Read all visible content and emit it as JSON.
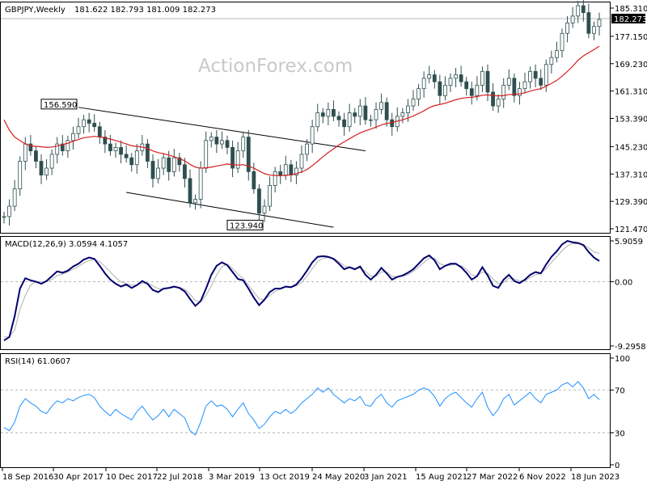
{
  "watermark": "ActionForex.com",
  "colors": {
    "candles": "#2f4f4f",
    "ma": "#d61f1f",
    "macd": "#00006e",
    "signal": "#b0b0b0",
    "rsi": "#1e90ff",
    "trendline": "#000000",
    "grid": "#b8b8b8",
    "price_label_bg": "#000000"
  },
  "chart_data": [
    {
      "type": "line",
      "title": "GBPJPY,Weekly",
      "ohlc_header": "181.622 182.793 181.009 182.273",
      "yticks": [
        "185.310",
        "177.150",
        "169.230",
        "161.310",
        "153.390",
        "145.230",
        "137.310",
        "129.390",
        "121.470"
      ],
      "current_price_label": "182.273",
      "ylim": [
        121.47,
        185.31
      ],
      "annotations": [
        {
          "label": "156.590",
          "value": 156.59,
          "date": "2017-11"
        },
        {
          "label": "123.940",
          "value": 123.94,
          "date": "2020-03"
        }
      ],
      "series": [
        {
          "name": "",
          "style": "candles",
          "values": [
            125,
            128,
            133,
            141,
            146,
            144,
            141,
            137,
            139,
            143,
            146,
            144,
            147,
            149,
            151,
            153,
            152,
            151,
            148,
            146,
            144,
            145,
            143,
            142,
            140,
            144,
            146,
            141,
            136,
            139,
            142,
            138,
            142,
            140,
            136,
            129,
            130,
            139,
            147,
            148,
            146,
            147,
            145,
            139,
            144,
            148,
            138,
            133,
            126,
            128,
            134,
            138,
            137,
            140,
            137,
            139,
            143,
            146,
            151,
            155,
            154,
            156,
            154,
            153,
            151,
            155,
            154,
            157,
            153,
            153,
            156,
            158,
            153,
            151,
            154,
            155,
            157,
            159,
            162,
            165,
            166,
            164,
            160,
            163,
            165,
            166,
            164,
            162,
            160,
            163,
            167,
            161,
            157,
            159,
            163,
            165,
            160,
            162,
            164,
            167,
            165,
            163,
            169,
            171,
            173,
            178,
            181,
            183,
            186,
            184,
            178,
            180,
            182
          ]
        },
        {
          "name": "",
          "style": "moving-average",
          "values": [
            153,
            150,
            148,
            147,
            146,
            145.5,
            145.3,
            145.2,
            145,
            145.1,
            145.4,
            145.8,
            146.2,
            146.8,
            147.3,
            147.8,
            148,
            148.2,
            148,
            147.8,
            147.4,
            147,
            146.5,
            146,
            145.5,
            145.3,
            145.1,
            144.7,
            144,
            143.5,
            143.2,
            142.8,
            142.3,
            141.8,
            141.1,
            140.1,
            139.3,
            139,
            139.1,
            139.3,
            139.6,
            139.9,
            140.2,
            140,
            139.9,
            140,
            139.6,
            139,
            138.2,
            137.4,
            137,
            136.9,
            136.8,
            136.9,
            137.1,
            137.4,
            137.9,
            138.6,
            139.7,
            141,
            142.3,
            143.5,
            144.6,
            145.7,
            146.6,
            147.5,
            148.4,
            149.2,
            149.8,
            150.3,
            150.9,
            151.5,
            151.9,
            152.2,
            152.6,
            153,
            153.5,
            154.1,
            154.8,
            155.6,
            156.5,
            157.1,
            157.4,
            157.8,
            158.3,
            158.8,
            159.2,
            159.4,
            159.5,
            159.7,
            160.1,
            160.2,
            160,
            159.9,
            160,
            160.3,
            160.3,
            160.5,
            160.8,
            161.3,
            161.7,
            162,
            162.7,
            163.5,
            164.4,
            165.6,
            167,
            168.5,
            170.2,
            171.5,
            172.4,
            173.3,
            174.3
          ]
        }
      ]
    },
    {
      "type": "line",
      "title": "MACD(12,26,9) 3.0594 4.1057",
      "yticks": [
        "5.9059",
        "0.00",
        "-9.2958"
      ],
      "ylim": [
        -9.2958,
        5.9059
      ],
      "series": [
        {
          "name": "",
          "style": "macd",
          "values": [
            -8.5,
            -8,
            -5,
            -1,
            0.5,
            0.2,
            0,
            -0.3,
            0.1,
            0.8,
            1.5,
            1.3,
            1.6,
            2.2,
            2.6,
            3.2,
            3.5,
            3.3,
            2.3,
            1.2,
            0.3,
            -0.3,
            -0.7,
            -0.4,
            -0.9,
            -0.5,
            0.1,
            -0.3,
            -1.2,
            -1.5,
            -1.0,
            -0.9,
            -0.7,
            -0.9,
            -1.4,
            -2.5,
            -3.5,
            -2.8,
            -1.0,
            1.0,
            2.3,
            2.8,
            2.4,
            1.4,
            0.4,
            0.2,
            -1.0,
            -2.3,
            -3.4,
            -2.6,
            -1.5,
            -1.0,
            -1.0,
            -0.7,
            -0.8,
            -0.4,
            0.5,
            1.6,
            2.8,
            3.6,
            3.7,
            3.6,
            3.3,
            2.6,
            1.8,
            2.1,
            1.8,
            2.2,
            1.0,
            0.3,
            1.0,
            2.0,
            1.2,
            0.3,
            0.7,
            0.9,
            1.3,
            1.8,
            2.6,
            3.4,
            3.8,
            3.1,
            1.8,
            2.3,
            2.6,
            2.6,
            2.1,
            1.3,
            0.3,
            0.8,
            2.1,
            0.9,
            -0.6,
            -0.9,
            0.3,
            1.0,
            0.1,
            -0.2,
            0.3,
            1.0,
            1.4,
            1.2,
            2.5,
            3.6,
            4.4,
            5.4,
            5.9,
            5.7,
            5.6,
            5.3,
            4.3,
            3.5,
            3.0
          ]
        },
        {
          "name": "",
          "style": "signal",
          "values": [
            -8,
            -8,
            -7,
            -4,
            -2,
            -0.5,
            0,
            0,
            0,
            0.3,
            0.9,
            1.1,
            1.4,
            1.8,
            2.2,
            2.7,
            3.1,
            3.2,
            2.9,
            2.2,
            1.4,
            0.6,
            0,
            -0.3,
            -0.5,
            -0.5,
            -0.2,
            -0.2,
            -0.6,
            -1.0,
            -1.1,
            -1.0,
            -0.8,
            -0.8,
            -1.1,
            -1.8,
            -2.7,
            -2.9,
            -2.0,
            -0.6,
            1.0,
            2.2,
            2.5,
            1.9,
            1.1,
            0.5,
            -0.5,
            -1.5,
            -2.5,
            -2.6,
            -2.0,
            -1.4,
            -1.1,
            -0.8,
            -0.8,
            -0.6,
            -0.1,
            0.8,
            1.9,
            2.9,
            3.4,
            3.5,
            3.4,
            2.9,
            2.3,
            2.1,
            1.9,
            2.0,
            1.5,
            0.8,
            0.8,
            1.4,
            1.4,
            0.8,
            0.7,
            0.8,
            1.0,
            1.5,
            2.1,
            2.8,
            3.4,
            3.4,
            2.6,
            2.3,
            2.4,
            2.5,
            2.3,
            1.8,
            1.0,
            0.8,
            1.4,
            1.2,
            0.4,
            -0.3,
            -0.1,
            0.5,
            0.4,
            0.1,
            0.1,
            0.6,
            1.0,
            1.2,
            1.9,
            2.8,
            3.6,
            4.5,
            5.2,
            5.5,
            5.5,
            5.4,
            4.9,
            4.3,
            4.1
          ]
        }
      ]
    },
    {
      "type": "line",
      "title": "RSI(14) 61.0607",
      "yticks": [
        "100",
        "70",
        "30",
        "0"
      ],
      "ylim": [
        0,
        100
      ],
      "guides": [
        70,
        30
      ],
      "series": [
        {
          "name": "",
          "style": "rsi",
          "values": [
            35,
            32,
            40,
            55,
            62,
            58,
            55,
            50,
            48,
            55,
            60,
            58,
            62,
            60,
            63,
            65,
            66,
            63,
            55,
            50,
            46,
            52,
            48,
            45,
            42,
            50,
            55,
            48,
            42,
            46,
            52,
            45,
            52,
            48,
            44,
            32,
            28,
            40,
            55,
            60,
            55,
            56,
            52,
            45,
            52,
            58,
            48,
            42,
            34,
            38,
            45,
            50,
            48,
            52,
            48,
            52,
            58,
            62,
            66,
            72,
            68,
            72,
            66,
            62,
            58,
            62,
            60,
            64,
            56,
            55,
            62,
            66,
            58,
            54,
            60,
            62,
            64,
            66,
            70,
            72,
            70,
            64,
            55,
            62,
            66,
            68,
            63,
            58,
            54,
            62,
            68,
            54,
            46,
            52,
            62,
            66,
            56,
            60,
            64,
            68,
            62,
            58,
            66,
            68,
            70,
            75,
            77,
            73,
            78,
            72,
            62,
            66,
            61
          ]
        }
      ]
    },
    {
      "type": "line",
      "xticks": [
        "18 Sep 2016",
        "30 Apr 2017",
        "10 Dec 2017",
        "22 Jul 2018",
        "3 Mar 2019",
        "13 Oct 2019",
        "24 May 2020",
        "3 Jan 2021",
        "15 Aug 2021",
        "27 Mar 2022",
        "6 Nov 2022",
        "18 Jun 2023"
      ]
    }
  ]
}
